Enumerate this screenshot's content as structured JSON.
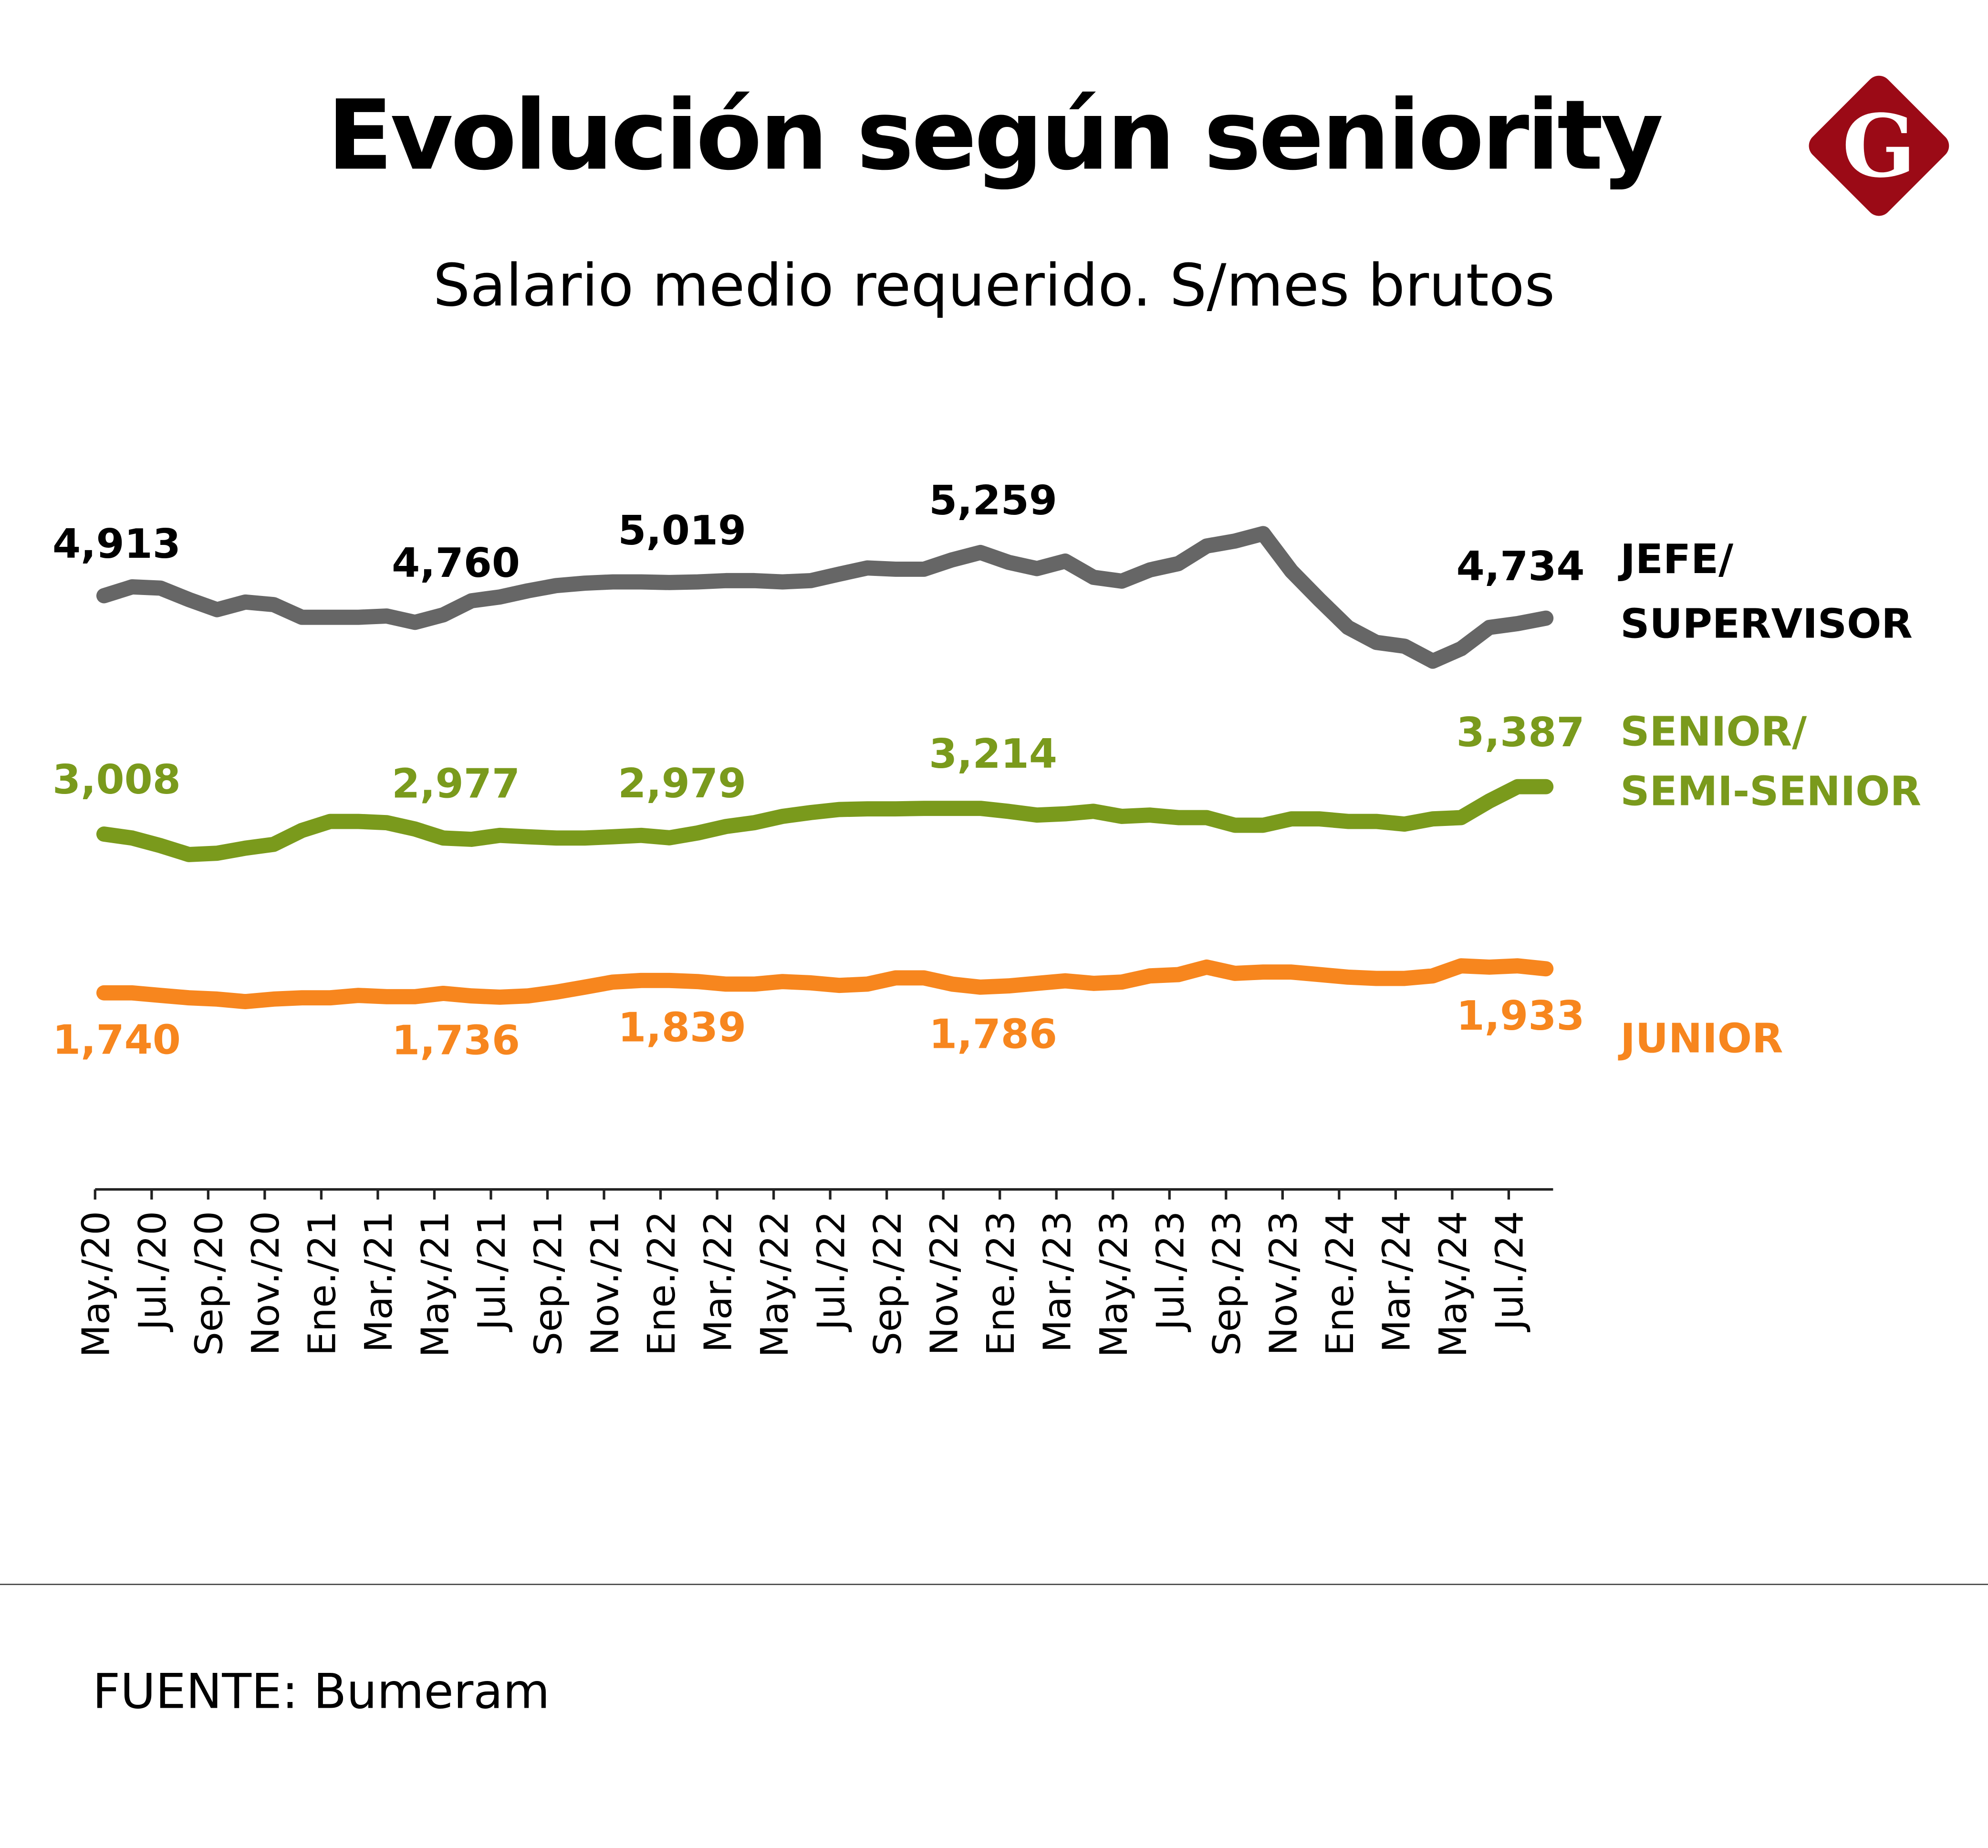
{
  "title": "Evolución según seniority",
  "subtitle": "Salario medio requerido. S/mes brutos",
  "source": "FUENTE: Bumeram",
  "logo": {
    "letter": "G",
    "color": "#9b0a16"
  },
  "chart_data": {
    "type": "line",
    "title": "Evolución según seniority",
    "subtitle": "Salario medio requerido. S/mes brutos",
    "x": [
      "May./20",
      "Jun./20",
      "Jul./20",
      "Ago./20",
      "Sep./20",
      "Oct./20",
      "Nov./20",
      "Dic./20",
      "Ene./21",
      "Feb./21",
      "Mar./21",
      "Abr./21",
      "May./21",
      "Jun./21",
      "Jul./21",
      "Ago./21",
      "Sep./21",
      "Oct./21",
      "Nov./21",
      "Dic./21",
      "Ene./22",
      "Feb./22",
      "Mar./22",
      "Abr./22",
      "May./22",
      "Jun./22",
      "Jul./22",
      "Ago./22",
      "Sep./22",
      "Oct./22",
      "Nov./22",
      "Dic./22",
      "Ene./23",
      "Feb./23",
      "Mar./23",
      "Abr./23",
      "May./23",
      "Jun./23",
      "Jul./23",
      "Ago./23",
      "Sep./23",
      "Oct./23",
      "Nov./23",
      "Dic./23",
      "Ene./24",
      "Feb./24",
      "Mar./24",
      "Abr./24",
      "May./24",
      "Jun./24",
      "Jul./24",
      "Ago./24"
    ],
    "x_tick_labels": [
      "May./20",
      "Jul./20",
      "Sep./20",
      "Nov./20",
      "Ene./21",
      "Mar./21",
      "May./21",
      "Jul./21",
      "Sep./21",
      "Nov./21",
      "Ene./22",
      "Mar./22",
      "May./22",
      "Jul./22",
      "Sep./22",
      "Nov./22",
      "Ene./23",
      "Mar./23",
      "May./23",
      "Jul./23",
      "Sep./23",
      "Nov./23",
      "Ene./24",
      "Mar./24",
      "May./24",
      "Jul./24"
    ],
    "grid": false,
    "legend": "right",
    "series": [
      {
        "name": "JEFE/\nSUPERVISOR",
        "name_lines": [
          "JEFE/",
          "SUPERVISOR"
        ],
        "color": "#666666",
        "values": [
          4913,
          4984,
          4974,
          4883,
          4802,
          4863,
          4842,
          4741,
          4741,
          4741,
          4751,
          4700,
          4760,
          4873,
          4903,
          4953,
          4994,
          5014,
          5024,
          5024,
          5019,
          5024,
          5034,
          5034,
          5024,
          5034,
          5085,
          5135,
          5125,
          5125,
          5200,
          5259,
          5180,
          5130,
          5190,
          5060,
          5030,
          5120,
          5170,
          5310,
          5350,
          5410,
          5110,
          4880,
          4660,
          4540,
          4510,
          4390,
          4490,
          4660,
          4690,
          4734
        ],
        "labels": [
          {
            "index": 0,
            "value": "4,913"
          },
          {
            "index": 12,
            "value": "4,760"
          },
          {
            "index": 20,
            "value": "5,019"
          },
          {
            "index": 31,
            "value": "5,259"
          },
          {
            "index": 51,
            "value": "4,734"
          }
        ]
      },
      {
        "name": "SENIOR/\nSEMI-SENIOR",
        "name_lines": [
          "SENIOR/",
          "SEMI-SENIOR"
        ],
        "color": "#7a9a1c",
        "values": [
          3008,
          2977,
          2916,
          2845,
          2855,
          2896,
          2926,
          3038,
          3110,
          3110,
          3100,
          3049,
          2977,
          2967,
          2998,
          2987,
          2977,
          2977,
          2987,
          2998,
          2979,
          3018,
          3069,
          3100,
          3150,
          3181,
          3205,
          3210,
          3210,
          3214,
          3214,
          3214,
          3190,
          3160,
          3171,
          3191,
          3150,
          3160,
          3140,
          3140,
          3079,
          3079,
          3130,
          3130,
          3110,
          3110,
          3089,
          3130,
          3140,
          3273,
          3387,
          3387
        ],
        "labels": [
          {
            "index": 0,
            "value": "3,008"
          },
          {
            "index": 12,
            "value": "2,977"
          },
          {
            "index": 20,
            "value": "2,979"
          },
          {
            "index": 31,
            "value": "3,214"
          },
          {
            "index": 51,
            "value": "3,387"
          }
        ]
      },
      {
        "name": "JUNIOR",
        "name_lines": [
          "JUNIOR"
        ],
        "color": "#f7861e",
        "values": [
          1740,
          1740,
          1720,
          1700,
          1690,
          1670,
          1690,
          1700,
          1700,
          1720,
          1710,
          1710,
          1736,
          1716,
          1706,
          1716,
          1746,
          1786,
          1826,
          1839,
          1839,
          1830,
          1810,
          1810,
          1830,
          1820,
          1800,
          1810,
          1860,
          1860,
          1810,
          1786,
          1796,
          1816,
          1836,
          1816,
          1826,
          1876,
          1886,
          1946,
          1896,
          1906,
          1906,
          1886,
          1866,
          1856,
          1856,
          1876,
          1956,
          1946,
          1956,
          1933
        ],
        "labels": [
          {
            "index": 0,
            "value": "1,740"
          },
          {
            "index": 12,
            "value": "1,736"
          },
          {
            "index": 20,
            "value": "1,839"
          },
          {
            "index": 31,
            "value": "1,786"
          },
          {
            "index": 51,
            "value": "1,933"
          }
        ]
      }
    ]
  }
}
